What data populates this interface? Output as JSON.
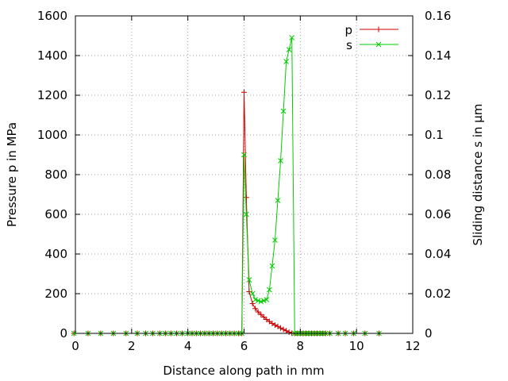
{
  "chart_data": {
    "type": "line",
    "xlabel": "Distance along path in mm",
    "ylabel": "Pressure p in MPa",
    "y2label": "Sliding distance s in µm",
    "xlim": [
      0,
      12
    ],
    "ylim": [
      0,
      1600
    ],
    "y2lim": [
      0,
      0.16
    ],
    "x_ticks": [
      "0",
      "2",
      "4",
      "6",
      "8",
      "10",
      "12"
    ],
    "y_ticks": [
      "0",
      "200",
      "400",
      "600",
      "800",
      "1000",
      "1200",
      "1400",
      "1600"
    ],
    "y2_ticks": [
      "0",
      "0.02",
      "0.04",
      "0.06",
      "0.08",
      "0.1",
      "0.12",
      "0.14",
      "0.16"
    ],
    "grid": true,
    "legend_position": "top-right",
    "series": [
      {
        "name": "p",
        "axis": "left",
        "color": "#cc0000",
        "marker": "plus",
        "points": [
          [
            -0.05,
            0
          ],
          [
            0.45,
            0
          ],
          [
            0.9,
            0
          ],
          [
            1.35,
            0
          ],
          [
            1.8,
            0
          ],
          [
            2.2,
            0
          ],
          [
            2.5,
            0
          ],
          [
            2.75,
            0
          ],
          [
            3.0,
            0
          ],
          [
            3.2,
            0
          ],
          [
            3.4,
            0
          ],
          [
            3.6,
            0
          ],
          [
            3.8,
            0
          ],
          [
            4.0,
            0
          ],
          [
            4.15,
            0
          ],
          [
            4.3,
            0
          ],
          [
            4.45,
            0
          ],
          [
            4.6,
            0
          ],
          [
            4.75,
            0
          ],
          [
            4.9,
            0
          ],
          [
            5.05,
            0
          ],
          [
            5.2,
            0
          ],
          [
            5.35,
            0
          ],
          [
            5.5,
            0
          ],
          [
            5.65,
            0
          ],
          [
            5.8,
            0
          ],
          [
            5.92,
            0
          ],
          [
            6.0,
            1215
          ],
          [
            6.08,
            685
          ],
          [
            6.18,
            210
          ],
          [
            6.3,
            150
          ],
          [
            6.4,
            125
          ],
          [
            6.5,
            108
          ],
          [
            6.6,
            95
          ],
          [
            6.7,
            82
          ],
          [
            6.8,
            70
          ],
          [
            6.9,
            60
          ],
          [
            7.0,
            50
          ],
          [
            7.1,
            42
          ],
          [
            7.2,
            35
          ],
          [
            7.3,
            27
          ],
          [
            7.4,
            20
          ],
          [
            7.5,
            13
          ],
          [
            7.6,
            6
          ],
          [
            7.7,
            1
          ],
          [
            7.8,
            0
          ],
          [
            7.9,
            0
          ],
          [
            8.0,
            0
          ],
          [
            8.1,
            0
          ],
          [
            8.2,
            0
          ],
          [
            8.3,
            0
          ],
          [
            8.4,
            0
          ],
          [
            8.5,
            0
          ],
          [
            8.6,
            0
          ],
          [
            8.7,
            0
          ],
          [
            8.8,
            0
          ],
          [
            8.9,
            0
          ],
          [
            9.05,
            0
          ],
          [
            9.35,
            0
          ],
          [
            9.6,
            0
          ],
          [
            9.9,
            0
          ],
          [
            10.3,
            0
          ],
          [
            10.8,
            0
          ]
        ]
      },
      {
        "name": "s",
        "axis": "right",
        "color": "#00cc00",
        "marker": "x",
        "points": [
          [
            -0.05,
            0
          ],
          [
            0.45,
            0
          ],
          [
            0.9,
            0
          ],
          [
            1.35,
            0
          ],
          [
            1.8,
            0
          ],
          [
            2.2,
            0
          ],
          [
            2.5,
            0
          ],
          [
            2.75,
            0
          ],
          [
            3.0,
            0
          ],
          [
            3.2,
            0
          ],
          [
            3.4,
            0
          ],
          [
            3.6,
            0
          ],
          [
            3.8,
            0
          ],
          [
            4.0,
            0
          ],
          [
            4.15,
            0
          ],
          [
            4.3,
            0
          ],
          [
            4.45,
            0
          ],
          [
            4.6,
            0
          ],
          [
            4.75,
            0
          ],
          [
            4.9,
            0
          ],
          [
            5.05,
            0
          ],
          [
            5.2,
            0
          ],
          [
            5.35,
            0
          ],
          [
            5.5,
            0
          ],
          [
            5.65,
            0
          ],
          [
            5.8,
            0
          ],
          [
            5.92,
            0
          ],
          [
            6.0,
            0.09
          ],
          [
            6.08,
            0.06
          ],
          [
            6.18,
            0.027
          ],
          [
            6.3,
            0.02
          ],
          [
            6.4,
            0.017
          ],
          [
            6.5,
            0.0165
          ],
          [
            6.6,
            0.016
          ],
          [
            6.7,
            0.0165
          ],
          [
            6.8,
            0.017
          ],
          [
            6.9,
            0.022
          ],
          [
            7.0,
            0.034
          ],
          [
            7.1,
            0.047
          ],
          [
            7.2,
            0.067
          ],
          [
            7.3,
            0.087
          ],
          [
            7.4,
            0.112
          ],
          [
            7.5,
            0.137
          ],
          [
            7.6,
            0.143
          ],
          [
            7.7,
            0.149
          ],
          [
            7.8,
            0
          ],
          [
            7.9,
            0
          ],
          [
            8.0,
            0
          ],
          [
            8.1,
            0
          ],
          [
            8.2,
            0
          ],
          [
            8.3,
            0
          ],
          [
            8.4,
            0
          ],
          [
            8.5,
            0
          ],
          [
            8.6,
            0
          ],
          [
            8.7,
            0
          ],
          [
            8.8,
            0
          ],
          [
            8.9,
            0
          ],
          [
            9.05,
            0
          ],
          [
            9.35,
            0
          ],
          [
            9.6,
            0
          ],
          [
            9.9,
            0
          ],
          [
            10.3,
            0
          ],
          [
            10.8,
            0
          ]
        ]
      }
    ]
  }
}
